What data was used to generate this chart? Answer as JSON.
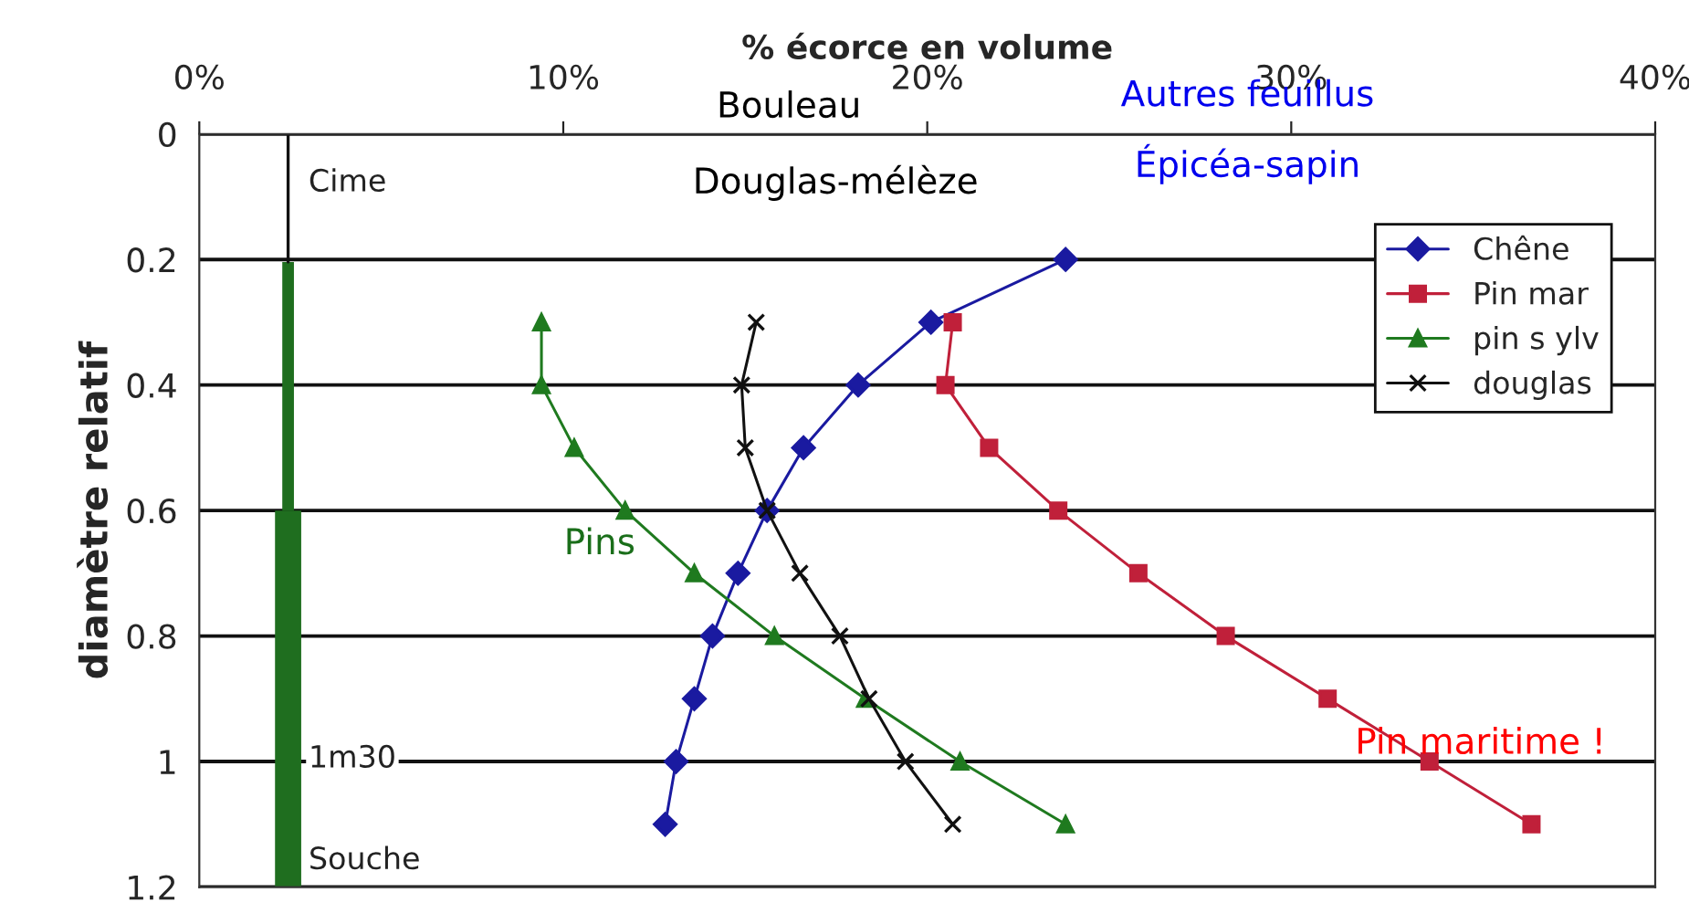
{
  "chart_data": {
    "type": "line",
    "xlabel": "% écorce en volume",
    "ylabel": "diamètre relatif",
    "xlim": [
      0,
      40
    ],
    "xticks": [
      {
        "value": 0,
        "label": "0%"
      },
      {
        "value": 10,
        "label": "10%"
      },
      {
        "value": 20,
        "label": "20%"
      },
      {
        "value": 30,
        "label": "30%"
      },
      {
        "value": 40,
        "label": "40%"
      }
    ],
    "ylim": [
      1.2,
      0
    ],
    "yticks": [
      0,
      0.2,
      0.4,
      0.6,
      0.8,
      1,
      1.2
    ],
    "grid": "y",
    "legend": "top right",
    "series": [
      {
        "name": "Chêne",
        "color": "#1a1aa0",
        "marker": "diamond",
        "x": [
          23.8,
          20.1,
          18.1,
          16.6,
          15.6,
          14.8,
          14.1,
          13.6,
          13.1,
          12.8
        ],
        "values": [
          0.2,
          0.3,
          0.4,
          0.5,
          0.6,
          0.7,
          0.8,
          0.9,
          1.0,
          1.1
        ]
      },
      {
        "name": "Pin mar",
        "color": "#c0203a",
        "marker": "square",
        "x": [
          20.7,
          20.5,
          21.7,
          23.6,
          25.8,
          28.2,
          31.0,
          33.8,
          36.6
        ],
        "values": [
          0.3,
          0.4,
          0.5,
          0.6,
          0.7,
          0.8,
          0.9,
          1.0,
          1.1
        ]
      },
      {
        "name": "pin s ylv",
        "color": "#1f7a1f",
        "marker": "triangle",
        "x": [
          9.4,
          9.4,
          10.3,
          11.7,
          13.6,
          15.8,
          18.3,
          20.9,
          23.8
        ],
        "values": [
          0.3,
          0.4,
          0.5,
          0.6,
          0.7,
          0.8,
          0.9,
          1.0,
          1.1
        ]
      },
      {
        "name": "douglas",
        "color": "#111111",
        "marker": "cross",
        "x": [
          15.3,
          14.9,
          15.0,
          15.6,
          16.5,
          17.6,
          18.4,
          19.4,
          20.7
        ],
        "values": [
          0.3,
          0.4,
          0.5,
          0.6,
          0.7,
          0.8,
          0.9,
          1.0,
          1.1
        ]
      }
    ],
    "annotations": [
      "Cime",
      "1m30",
      "Souche",
      "Bouleau",
      "Douglas-mélèze",
      "Autres feuillus",
      "Épicéa-sapin",
      "Pins",
      "Pin maritime !"
    ]
  }
}
